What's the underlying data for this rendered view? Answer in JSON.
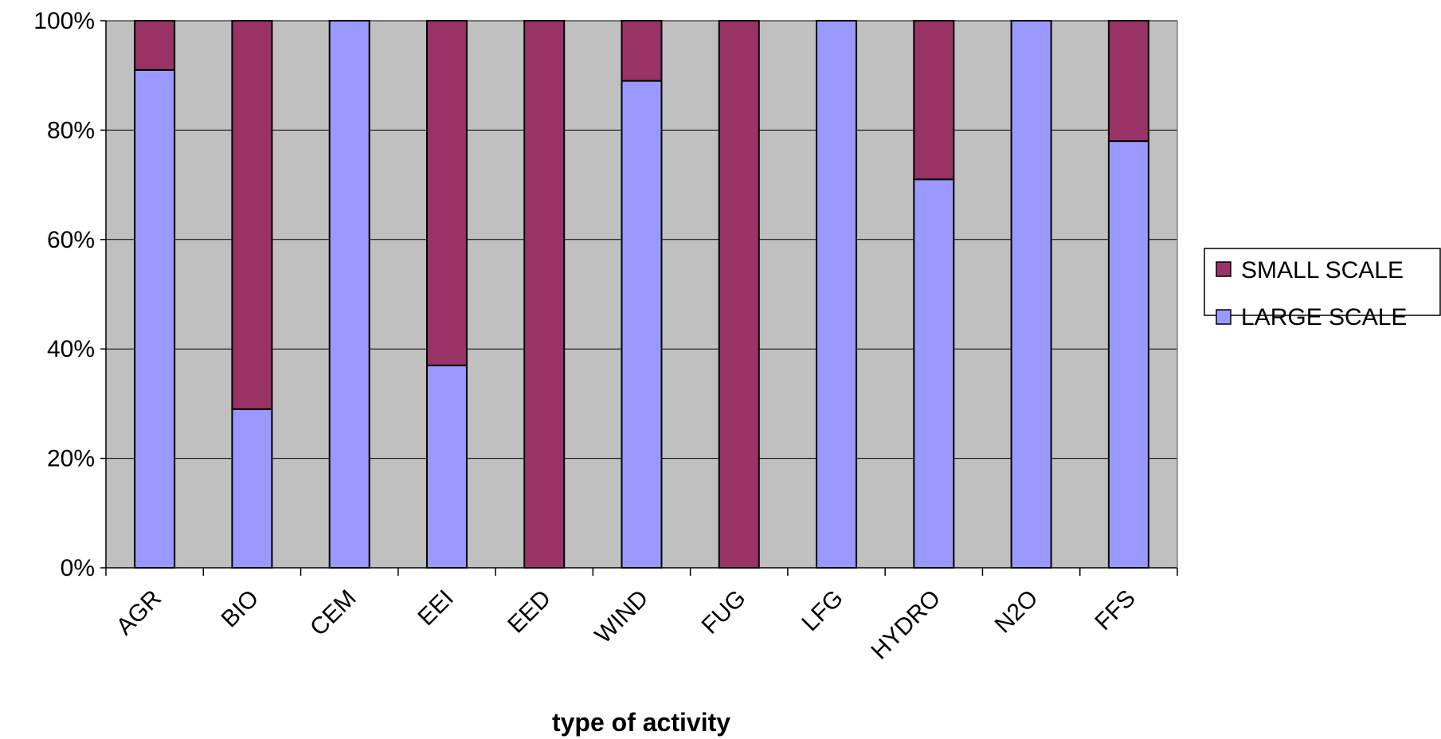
{
  "chart_data": {
    "type": "bar",
    "stacked": true,
    "percent_stacked": true,
    "categories": [
      "AGR",
      "BIO",
      "CEM",
      "EEI",
      "EED",
      "WIND",
      "FUG",
      "LFG",
      "HYDRO",
      "N2O",
      "FFS"
    ],
    "series": [
      {
        "name": "LARGE SCALE",
        "color": "#9999ff",
        "values": [
          91,
          29,
          100,
          37,
          0,
          89,
          0,
          100,
          71,
          100,
          78
        ]
      },
      {
        "name": "SMALL SCALE",
        "color": "#993366",
        "values": [
          9,
          71,
          0,
          63,
          100,
          11,
          100,
          0,
          29,
          0,
          22
        ]
      }
    ],
    "xlabel": "type of activity",
    "ylabel": "",
    "ylim": [
      0,
      100
    ],
    "y_ticks": [
      "0%",
      "20%",
      "40%",
      "60%",
      "80%",
      "100%"
    ],
    "grid": true,
    "plot_background": "#c0c0c0",
    "legend": {
      "position": "right",
      "entries": [
        "SMALL SCALE",
        "LARGE SCALE"
      ]
    }
  }
}
